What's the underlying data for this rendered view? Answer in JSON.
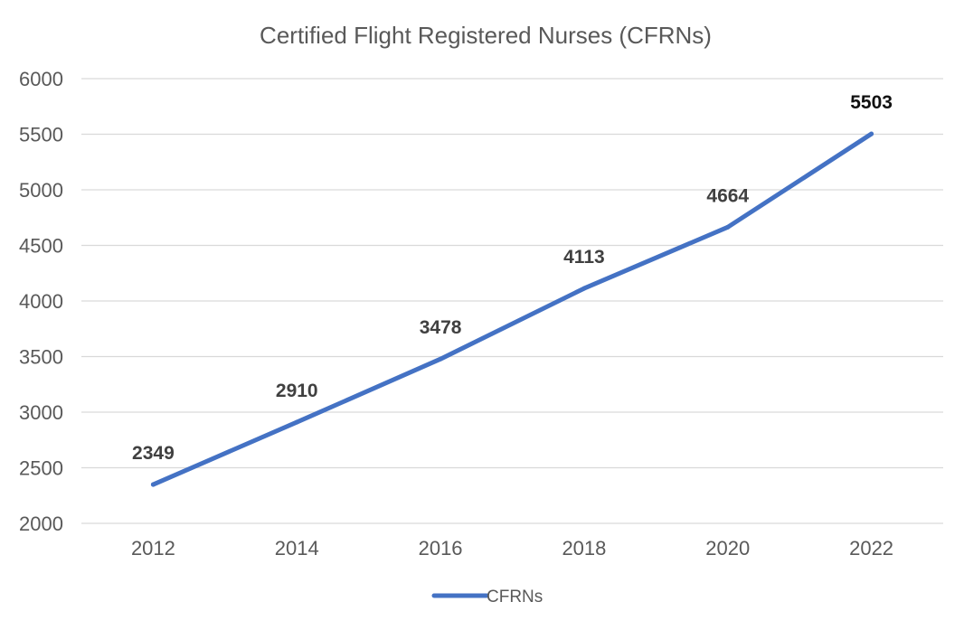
{
  "chart_data": {
    "type": "line",
    "title": "Certified Flight Registered Nurses (CFRNs)",
    "xlabel": "",
    "ylabel": "",
    "categories": [
      "2012",
      "2014",
      "2016",
      "2018",
      "2020",
      "2022"
    ],
    "series": [
      {
        "name": "CFRNs",
        "color": "#4472c4",
        "values": [
          2349,
          2910,
          3478,
          4113,
          4664,
          5503
        ]
      }
    ],
    "ylim": [
      2000,
      6000
    ],
    "yticks": [
      "2000",
      "2500",
      "3000",
      "3500",
      "4000",
      "4500",
      "5000",
      "5500",
      "6000"
    ],
    "grid": true,
    "legend_position": "bottom"
  }
}
